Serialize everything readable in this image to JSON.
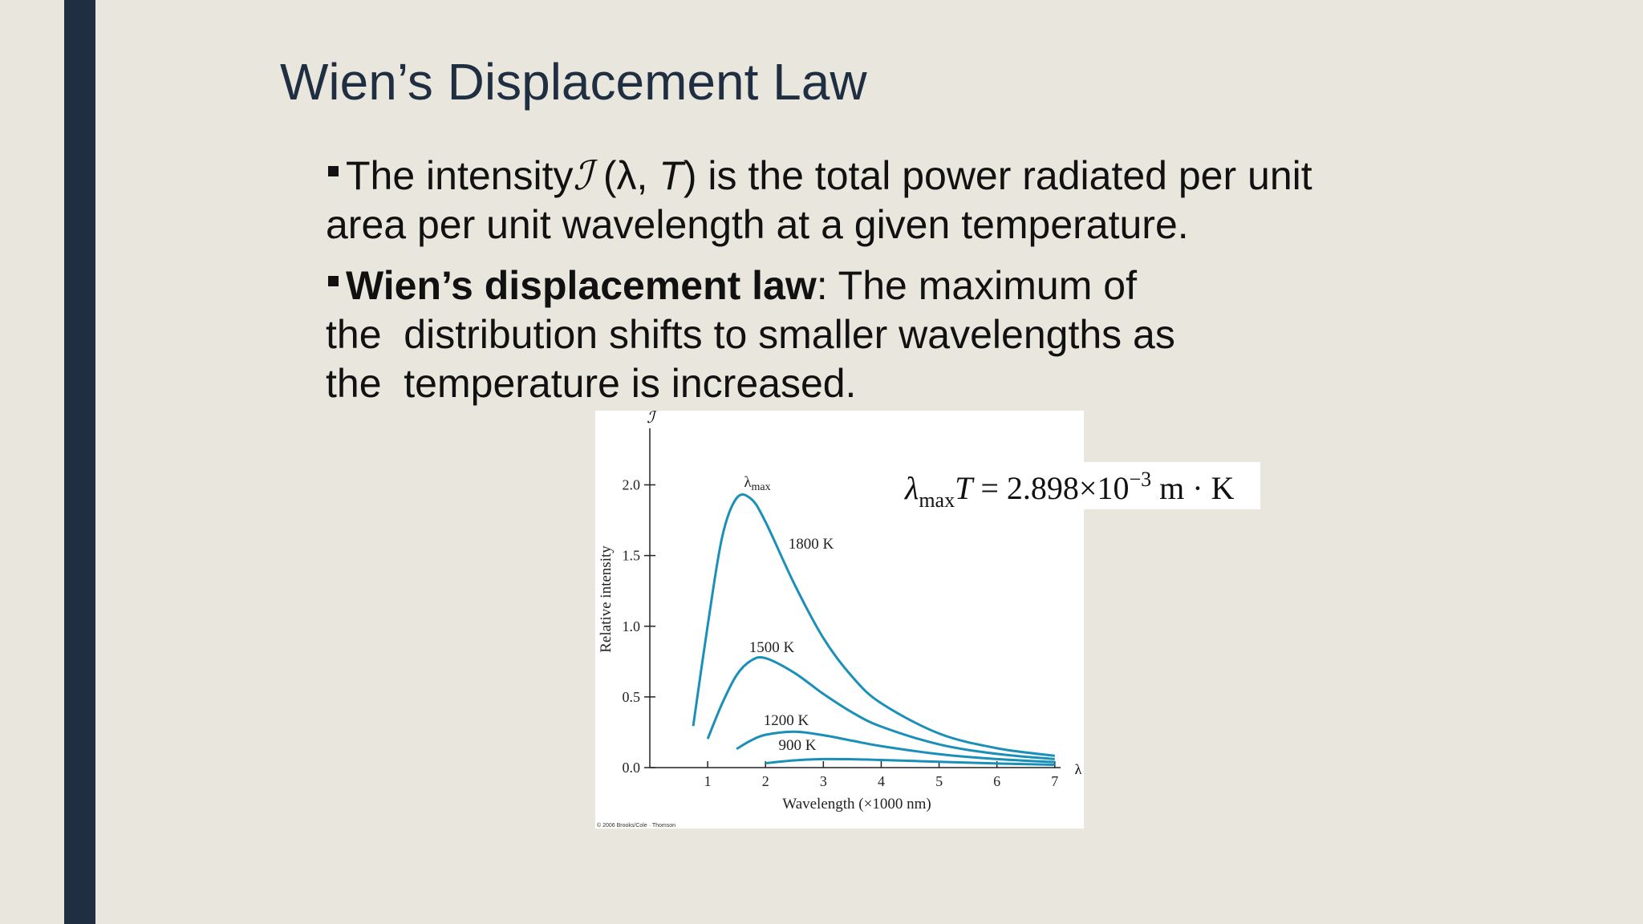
{
  "slide": {
    "title": "Wien’s Displacement Law",
    "bullets": [
      {
        "lines": [
          [
            "The intensity",
            "ℐ",
            " (λ, ",
            "T",
            ") is the total power radiated per unit"
          ],
          [
            "area per unit wavelength at a given temperature."
          ]
        ]
      },
      {
        "lines": [
          [
            "Wien’s displacement law",
            ": The maximum of"
          ],
          [
            "the  distribution shifts to smaller wavelengths as"
          ],
          [
            "the  temperature is increased."
          ]
        ]
      }
    ]
  },
  "chart_data": {
    "type": "line",
    "x_label": "Wavelength (×1000 nm)",
    "y_label": "Relative intensity",
    "x_symbol": "λ",
    "y_symbol": "ℐ",
    "peak_label": {
      "symbol": "λ",
      "sub": "max"
    },
    "formula": {
      "symbol": "λ",
      "sub": "max",
      "var": "T",
      "body": " = 2.898×10",
      "exp": "−3",
      "unit": " m · K"
    },
    "credit": "© 2006 Brooks/Cole · Thomson",
    "x": [
      0.75,
      1,
      1.25,
      1.5,
      1.75,
      2,
      2.5,
      3,
      3.5,
      4,
      5,
      6,
      7
    ],
    "series": [
      {
        "name": "1800 K",
        "color": "#1a8fb8",
        "values": [
          0.294,
          1.004,
          1.63,
          1.906,
          1.901,
          1.738,
          1.297,
          0.916,
          0.642,
          0.455,
          0.241,
          0.137,
          0.083
        ]
      },
      {
        "name": "1500 K",
        "color": "#1a8fb8",
        "values": [
          null,
          0.203,
          0.453,
          0.654,
          0.757,
          0.774,
          0.67,
          0.521,
          0.39,
          0.29,
          0.164,
          0.097,
          0.06
        ]
      },
      {
        "name": "1200 K",
        "color": "#1a8fb8",
        "values": [
          null,
          null,
          null,
          0.132,
          0.192,
          0.232,
          0.254,
          0.229,
          0.19,
          0.152,
          0.095,
          0.06,
          0.039
        ]
      },
      {
        "name": "900 K",
        "color": "#1a8fb8",
        "values": [
          null,
          null,
          null,
          null,
          null,
          0.031,
          0.051,
          0.06,
          0.059,
          0.054,
          0.041,
          0.029,
          0.02
        ]
      }
    ],
    "xlim": [
      0,
      7.1
    ],
    "ylim": [
      0,
      2.4
    ],
    "xticks": [
      1,
      2,
      3,
      4,
      5,
      6,
      7
    ],
    "yticks": [
      {
        "value": 0,
        "label": "0.0"
      },
      {
        "value": 0.5,
        "label": "0.5"
      },
      {
        "value": 1,
        "label": "1.0"
      },
      {
        "value": 1.5,
        "label": "1.5"
      },
      {
        "value": 2,
        "label": "2.0"
      }
    ],
    "grid": false
  }
}
